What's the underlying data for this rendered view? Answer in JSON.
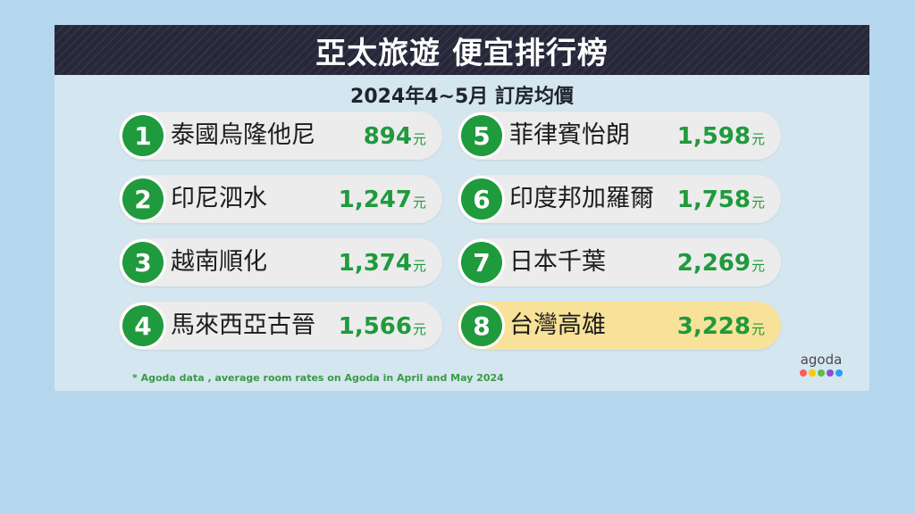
{
  "header": {
    "title": "亞太旅遊 便宜排行榜",
    "subtitle": "2024年4~5月 訂房均價"
  },
  "ranking": [
    {
      "rank": "1",
      "place": "泰國烏隆他尼",
      "price": "894",
      "unit": "元"
    },
    {
      "rank": "2",
      "place": "印尼泗水",
      "price": "1,247",
      "unit": "元"
    },
    {
      "rank": "3",
      "place": "越南順化",
      "price": "1,374",
      "unit": "元"
    },
    {
      "rank": "4",
      "place": "馬來西亞古晉",
      "price": "1,566",
      "unit": "元"
    },
    {
      "rank": "5",
      "place": "菲律賓怡朗",
      "price": "1,598",
      "unit": "元"
    },
    {
      "rank": "6",
      "place": "印度邦加羅爾",
      "price": "1,758",
      "unit": "元"
    },
    {
      "rank": "7",
      "place": "日本千葉",
      "price": "2,269",
      "unit": "元"
    },
    {
      "rank": "8",
      "place": "台灣高雄",
      "price": "3,228",
      "unit": "元",
      "highlighted": true
    }
  ],
  "footnote": "* Agoda data , average room rates on Agoda in April and May 2024",
  "logo": {
    "text": "agoda",
    "dot_colors": [
      "#ff5a5f",
      "#ffc800",
      "#5bbf3f",
      "#8a4fd1",
      "#2a9df4"
    ]
  },
  "colors": {
    "accent_green": "#1f9a3c",
    "highlight": "#f8e29a",
    "title_bar": "#262739"
  }
}
